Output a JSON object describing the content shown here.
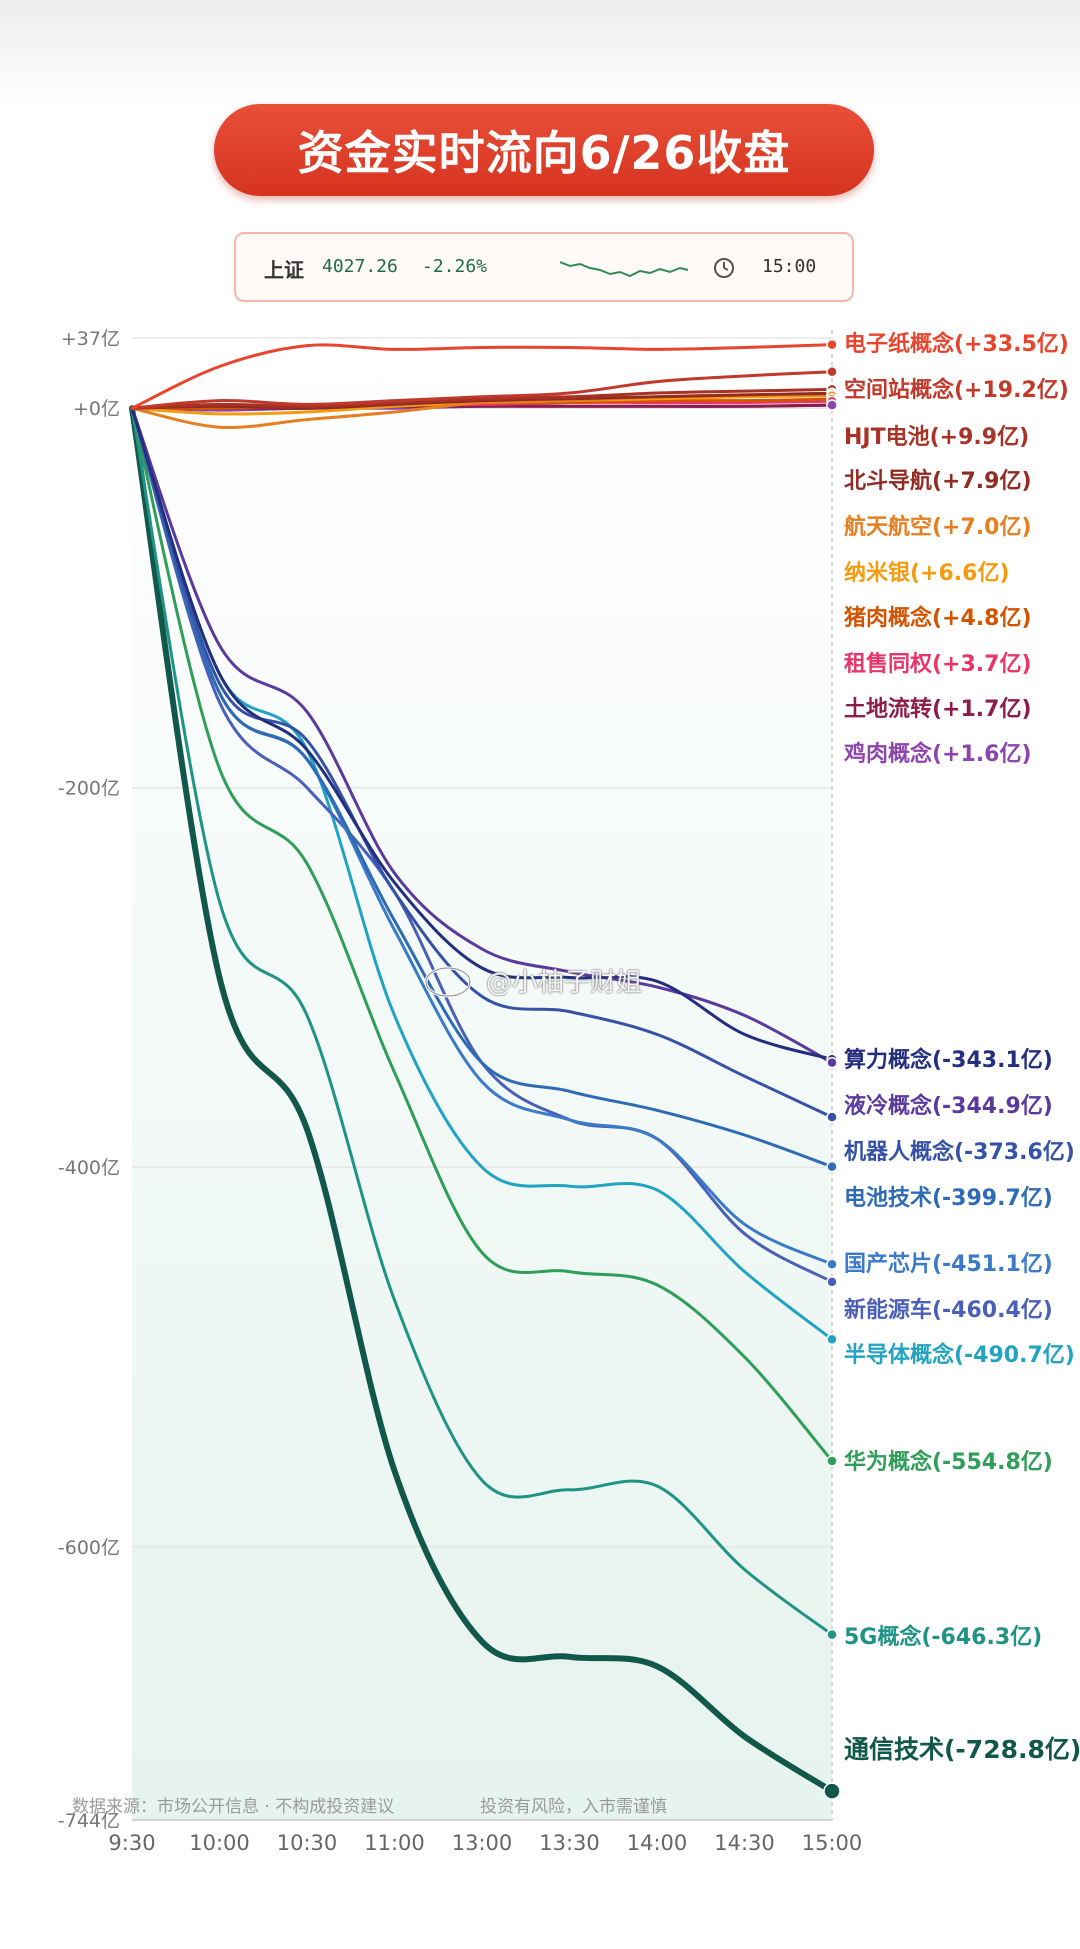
{
  "header": {
    "title": "资金实时流向6/26收盘"
  },
  "index_box": {
    "name": "上证",
    "value": "4027.26",
    "change": "-2.26%",
    "time": "15:00"
  },
  "footer": {
    "left": "数据来源：市场公开信息 · 不构成投资建议",
    "right": "投资有风险，入市需谨慎"
  },
  "watermark": "@小柚子财姐",
  "chart_data": {
    "type": "line",
    "title": "",
    "xlabel": "",
    "ylabel": "",
    "x": [
      "9:30",
      "10:00",
      "10:30",
      "11:00",
      "13:00",
      "13:30",
      "14:00",
      "14:30",
      "15:00"
    ],
    "x_ticks": [
      "9:30",
      "10:00",
      "10:30",
      "11:00",
      "13:00",
      "13:30",
      "14:00",
      "14:30",
      "15:00"
    ],
    "y_ticks": [
      "+37亿",
      "+0亿",
      "-200亿",
      "-400亿",
      "-600亿",
      "-744亿"
    ],
    "ylim": [
      -744,
      37
    ],
    "grid": "horizontal",
    "series": [
      {
        "name": "电子纸概念",
        "label": "电子纸概念(+33.5亿)",
        "color": "#e8452f",
        "values": [
          0,
          22,
          33,
          31,
          32,
          32,
          31,
          32,
          33.5
        ]
      },
      {
        "name": "空间站概念",
        "label": "空间站概念(+19.2亿)",
        "color": "#c0392b",
        "values": [
          0,
          4,
          2,
          4,
          6,
          8,
          14,
          17,
          19.2
        ]
      },
      {
        "name": "HJT电池",
        "label": "HJT电池(+9.9亿)",
        "color": "#a93226",
        "values": [
          0,
          2,
          1,
          3,
          5,
          6,
          8,
          9,
          9.9
        ]
      },
      {
        "name": "北斗导航",
        "label": "北斗导航(+7.9亿)",
        "color": "#922b21",
        "values": [
          0,
          1,
          0,
          2,
          4,
          5,
          6,
          7,
          7.9
        ]
      },
      {
        "name": "航天航空",
        "label": "航天航空(+7.0亿)",
        "color": "#e67e22",
        "values": [
          0,
          -10,
          -6,
          -2,
          3,
          4,
          6,
          7,
          7.0
        ]
      },
      {
        "name": "纳米银",
        "label": "纳米银(+6.6亿)",
        "color": "#f39c12",
        "values": [
          0,
          -3,
          -2,
          1,
          3,
          4,
          5,
          6,
          6.6
        ]
      },
      {
        "name": "猪肉概念",
        "label": "猪肉概念(+4.8亿)",
        "color": "#d35400",
        "values": [
          0,
          0,
          1,
          2,
          3,
          3,
          4,
          4,
          4.8
        ]
      },
      {
        "name": "租售同权",
        "label": "租售同权(+3.7亿)",
        "color": "#e8356a",
        "values": [
          0,
          1,
          1,
          2,
          2,
          3,
          3,
          3,
          3.7
        ]
      },
      {
        "name": "土地流转",
        "label": "土地流转(+1.7亿)",
        "color": "#8e1c4a",
        "values": [
          0,
          0,
          0,
          1,
          1,
          1,
          1,
          1,
          1.7
        ]
      },
      {
        "name": "鸡肉概念",
        "label": "鸡肉概念(+1.6亿)",
        "color": "#8e44ad",
        "values": [
          0,
          -1,
          0,
          0,
          1,
          1,
          1,
          1,
          1.6
        ]
      },
      {
        "name": "算力概念",
        "label": "算力概念(-343.1亿)",
        "color": "#232f7e",
        "values": [
          0,
          -140,
          -180,
          -250,
          -295,
          -300,
          -302,
          -330,
          -343.1
        ]
      },
      {
        "name": "液冷概念",
        "label": "液冷概念(-344.9亿)",
        "color": "#5b3a9e",
        "values": [
          0,
          -125,
          -160,
          -245,
          -285,
          -297,
          -305,
          -320,
          -344.9
        ]
      },
      {
        "name": "机器人概念",
        "label": "机器人概念(-373.6亿)",
        "color": "#3552a8",
        "values": [
          0,
          -145,
          -175,
          -255,
          -310,
          -318,
          -330,
          -352,
          -373.6
        ]
      },
      {
        "name": "电池技术",
        "label": "电池技术(-399.7亿)",
        "color": "#2e6bb4",
        "values": [
          0,
          -150,
          -185,
          -270,
          -345,
          -360,
          -370,
          -383,
          -399.7
        ]
      },
      {
        "name": "国产芯片",
        "label": "国产芯片(-451.1亿)",
        "color": "#3a7ac8",
        "values": [
          0,
          -150,
          -185,
          -275,
          -355,
          -375,
          -385,
          -430,
          -451.1
        ]
      },
      {
        "name": "新能源车",
        "label": "新能源车(-460.4亿)",
        "color": "#4a5fb8",
        "values": [
          0,
          -155,
          -200,
          -255,
          -345,
          -375,
          -385,
          -435,
          -460.4
        ]
      },
      {
        "name": "半导体概念",
        "label": "半导体概念(-490.7亿)",
        "color": "#21a4c2",
        "values": [
          0,
          -140,
          -180,
          -320,
          -400,
          -410,
          -412,
          -455,
          -490.7
        ]
      },
      {
        "name": "华为概念",
        "label": "华为概念(-554.8亿)",
        "color": "#2f9e58",
        "values": [
          0,
          -190,
          -240,
          -350,
          -445,
          -455,
          -462,
          -500,
          -554.8
        ]
      },
      {
        "name": "5G概念",
        "label": "5G概念(-646.3亿)",
        "color": "#1f9485",
        "values": [
          0,
          -260,
          -320,
          -470,
          -565,
          -570,
          -568,
          -612,
          -646.3
        ]
      },
      {
        "name": "通信技术",
        "label": "通信技术(-728.8亿)",
        "color": "#12584a",
        "values": [
          0,
          -300,
          -380,
          -560,
          -650,
          -658,
          -663,
          -700,
          -728.8
        ]
      }
    ]
  }
}
